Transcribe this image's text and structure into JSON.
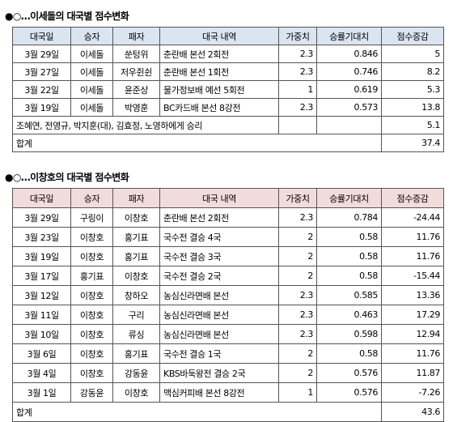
{
  "table1": {
    "title": "●○…이세돌의 대국별 점수변화",
    "headers": [
      "대국일",
      "승자",
      "패자",
      "대국 내역",
      "가중치",
      "승률기대치",
      "점수증감"
    ],
    "rows": [
      [
        "3월 29일",
        "이세돌",
        "쑨텅위",
        "춘란배 본선 2회전",
        "2.3",
        "0.846",
        "5"
      ],
      [
        "3월 27일",
        "이세돌",
        "저우쥔쉰",
        "춘란배 본선 1회전",
        "2.3",
        "0.746",
        "8.2"
      ],
      [
        "3월 22일",
        "이세돌",
        "윤준상",
        "물가정보배 예선 5회전",
        "1",
        "0.619",
        "5.3"
      ],
      [
        "3월 19일",
        "이세돌",
        "박영훈",
        "BC카드배 본선 8강전",
        "2.3",
        "0.573",
        "13.8"
      ]
    ],
    "note_text": "조혜연, 전영규, 박지훈(대), 김효정, 노영하에게 승리",
    "note_value": "5.1",
    "total_label": "합계",
    "total_value": "37.4"
  },
  "table2": {
    "title": "●○…이창호의 대국별 점수변화",
    "headers": [
      "대국일",
      "승자",
      "패자",
      "대국 내역",
      "가중치",
      "승률기대치",
      "점수증감"
    ],
    "rows": [
      [
        "3월 29일",
        "구링이",
        "이창호",
        "춘란배 본선 2회전",
        "2.3",
        "0.784",
        "-24.44"
      ],
      [
        "3월 23일",
        "이창호",
        "홍기표",
        "국수전 결승 4국",
        "2",
        "0.58",
        "11.76"
      ],
      [
        "3월 19일",
        "이창호",
        "홍기표",
        "국수전 결승 3국",
        "2",
        "0.58",
        "11.76"
      ],
      [
        "3월 17일",
        "홍기표",
        "이창호",
        "국수전 결승 2국",
        "2",
        "0.58",
        "-15.44"
      ],
      [
        "3월 12일",
        "이창호",
        "창하오",
        "농심신라면배 본선",
        "2.3",
        "0.585",
        "13.36"
      ],
      [
        "3월 11일",
        "이창호",
        "구리",
        "농심신라면배 본선",
        "2.3",
        "0.463",
        "17.29"
      ],
      [
        "3월 10일",
        "이창호",
        "류싱",
        "농심신라면배 본선",
        "2.3",
        "0.598",
        "12.94"
      ],
      [
        "3월 6일",
        "이창호",
        "홍기표",
        "국수전 결승 1국",
        "2",
        "0.58",
        "11.76"
      ],
      [
        "3월 4일",
        "이창호",
        "강동윤",
        "KBS바둑왕전 결승 2국",
        "2",
        "0.576",
        "11.87"
      ],
      [
        "3월 1일",
        "강동윤",
        "이창호",
        "맥심커피배 본선 8강전",
        "1",
        "0.576",
        "-7.26"
      ]
    ],
    "total_label": "합계",
    "total_value": "43.6"
  }
}
